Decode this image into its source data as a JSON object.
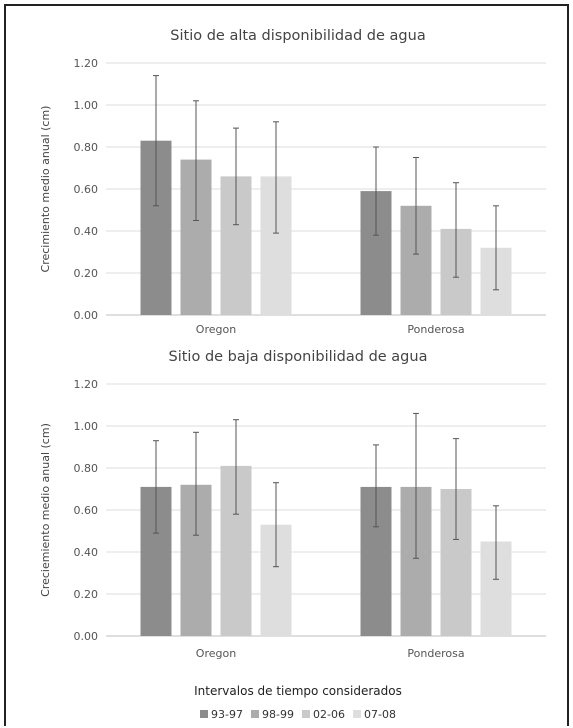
{
  "chart_data": [
    {
      "type": "bar",
      "title": "Sitio de alta disponibilidad de agua",
      "xlabel": "",
      "ylabel": "Crecimiento medio anual (cm)",
      "ylim": [
        0,
        1.2
      ],
      "yticks": [
        "0.00",
        "0.20",
        "0.40",
        "0.60",
        "0.80",
        "1.00",
        "1.20"
      ],
      "categories": [
        "Oregon",
        "Ponderosa"
      ],
      "grid": true,
      "series": [
        {
          "name": "93-97",
          "color": "#8c8c8c",
          "values": [
            0.83,
            0.59
          ],
          "error_low": [
            0.52,
            0.38
          ],
          "error_high": [
            1.14,
            0.8
          ]
        },
        {
          "name": "98-99",
          "color": "#acacac",
          "values": [
            0.74,
            0.52
          ],
          "error_low": [
            0.45,
            0.29
          ],
          "error_high": [
            1.02,
            0.75
          ]
        },
        {
          "name": "02-06",
          "color": "#c9c9c9",
          "values": [
            0.66,
            0.41
          ],
          "error_low": [
            0.43,
            0.18
          ],
          "error_high": [
            0.89,
            0.63
          ]
        },
        {
          "name": "07-08",
          "color": "#dedede",
          "values": [
            0.66,
            0.32
          ],
          "error_low": [
            0.39,
            0.12
          ],
          "error_high": [
            0.92,
            0.52
          ]
        }
      ]
    },
    {
      "type": "bar",
      "title": "Sitio de baja disponibilidad de agua",
      "xlabel": "",
      "ylabel": "Creciemiento medio anual (cm)",
      "ylim": [
        0,
        1.2
      ],
      "yticks": [
        "0.00",
        "0.20",
        "0.40",
        "0.60",
        "0.80",
        "1.00",
        "1.20"
      ],
      "categories": [
        "Oregon",
        "Ponderosa"
      ],
      "grid": true,
      "series": [
        {
          "name": "93-97",
          "color": "#8c8c8c",
          "values": [
            0.71,
            0.71
          ],
          "error_low": [
            0.49,
            0.52
          ],
          "error_high": [
            0.93,
            0.91
          ]
        },
        {
          "name": "98-99",
          "color": "#acacac",
          "values": [
            0.72,
            0.71
          ],
          "error_low": [
            0.48,
            0.37
          ],
          "error_high": [
            0.97,
            1.06
          ]
        },
        {
          "name": "02-06",
          "color": "#c9c9c9",
          "values": [
            0.81,
            0.7
          ],
          "error_low": [
            0.58,
            0.46
          ],
          "error_high": [
            1.03,
            0.94
          ]
        },
        {
          "name": "07-08",
          "color": "#dedede",
          "values": [
            0.53,
            0.45
          ],
          "error_low": [
            0.33,
            0.27
          ],
          "error_high": [
            0.73,
            0.62
          ]
        }
      ]
    }
  ],
  "legend": {
    "title": "Intervalos de tiempo considerados",
    "position": "bottom-center",
    "items": [
      {
        "label": "93-97",
        "color": "#8c8c8c"
      },
      {
        "label": "98-99",
        "color": "#acacac"
      },
      {
        "label": "02-06",
        "color": "#c9c9c9"
      },
      {
        "label": "07-08",
        "color": "#dedede"
      }
    ]
  }
}
